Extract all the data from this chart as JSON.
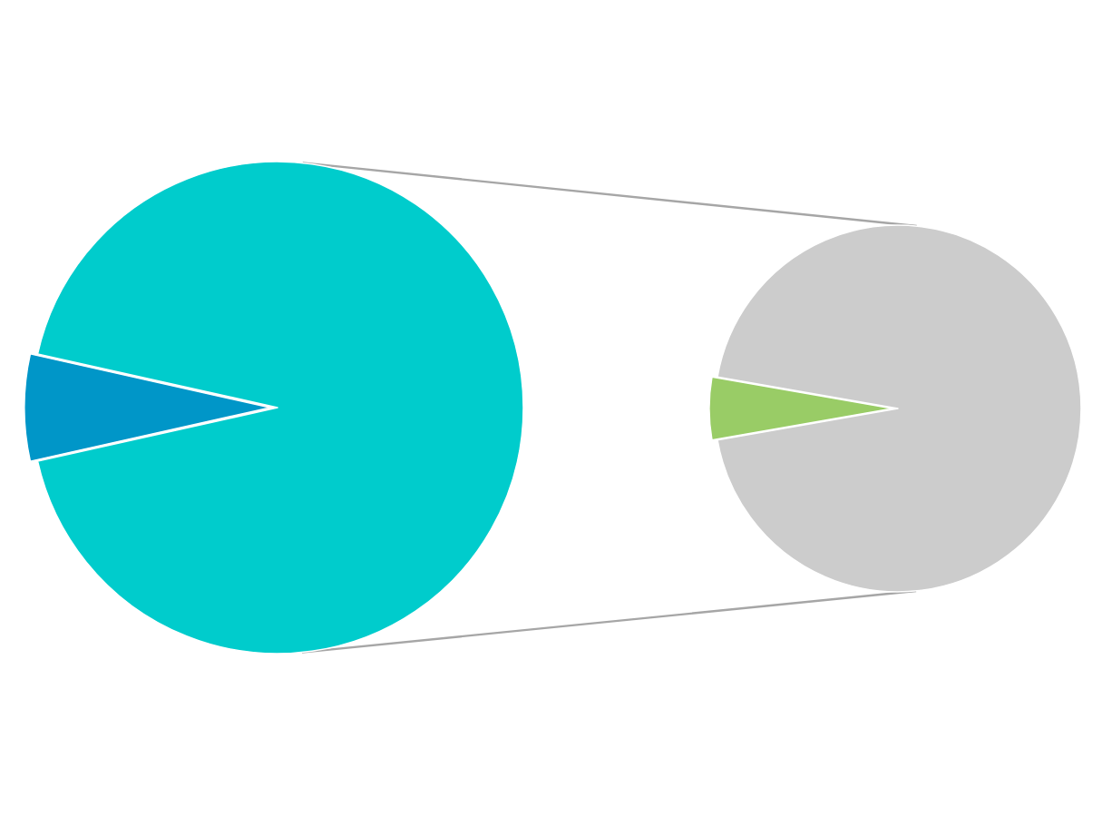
{
  "chart_data": [
    {
      "type": "pie",
      "categories": [
        null,
        null
      ],
      "values": [
        93,
        7
      ],
      "colors": [
        "#00cccc",
        "#0096c8"
      ]
    },
    {
      "type": "pie",
      "categories": [
        null,
        null
      ],
      "values": [
        94.5,
        5.5
      ],
      "colors": [
        "#cccccc",
        "#99cc66"
      ]
    }
  ]
}
